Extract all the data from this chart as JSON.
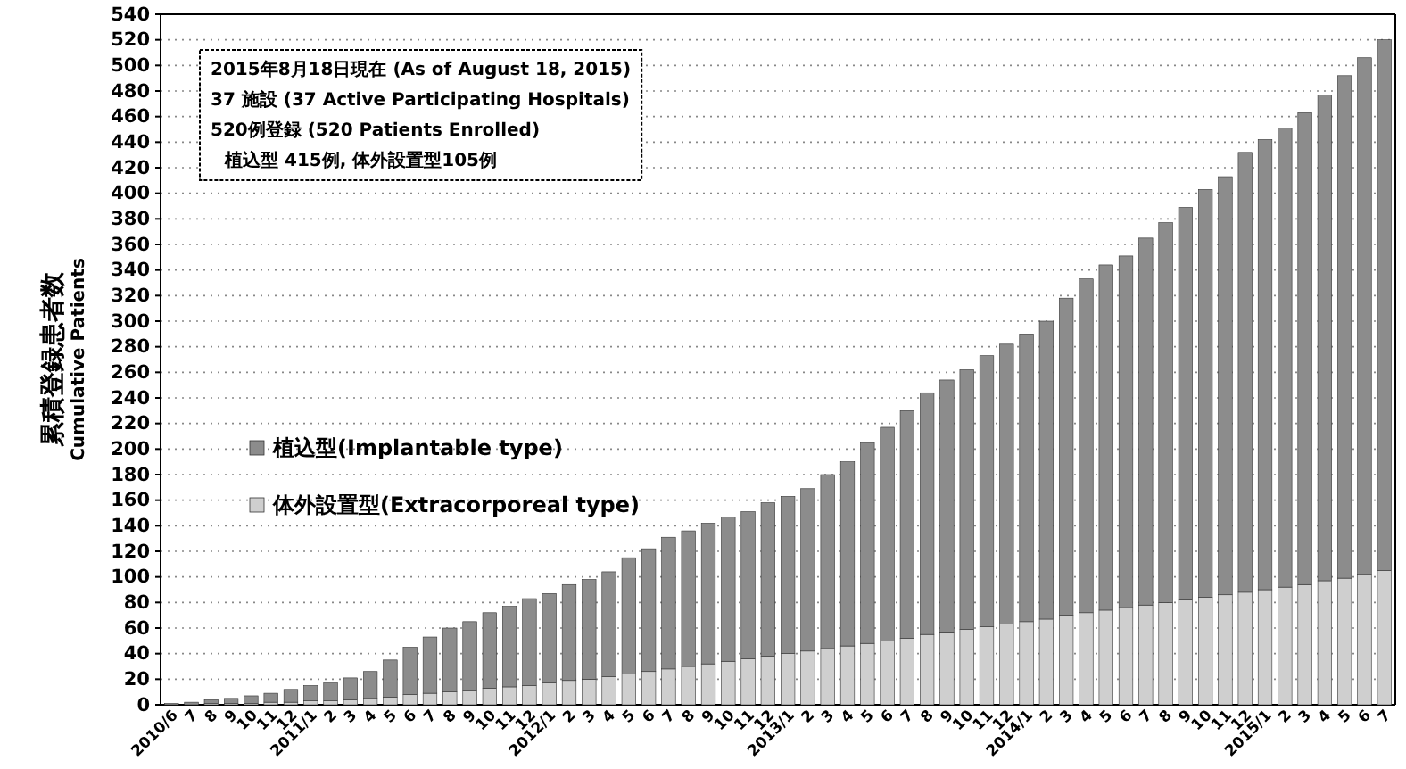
{
  "chart_data": {
    "type": "bar",
    "stacked": true,
    "ylabel": "累積登録患者数\nCumulative Patients",
    "categories": [
      "2010/6",
      "7",
      "8",
      "9",
      "10",
      "11",
      "12",
      "2011/1",
      "2",
      "3",
      "4",
      "5",
      "6",
      "7",
      "8",
      "9",
      "10",
      "11",
      "12",
      "2012/1",
      "2",
      "3",
      "4",
      "5",
      "6",
      "7",
      "8",
      "9",
      "10",
      "11",
      "12",
      "2013/1",
      "2",
      "3",
      "4",
      "5",
      "6",
      "7",
      "8",
      "9",
      "10",
      "11",
      "12",
      "2014/1",
      "2",
      "3",
      "4",
      "5",
      "6",
      "7",
      "8",
      "9",
      "10",
      "11",
      "12",
      "2015/1",
      "2",
      "3",
      "4",
      "5",
      "6",
      "7"
    ],
    "series": [
      {
        "name": "体外設置型(Extracorporeal type)",
        "color": "#cfcfcf",
        "values": [
          0,
          0,
          1,
          1,
          1,
          2,
          2,
          3,
          3,
          4,
          5,
          6,
          8,
          9,
          10,
          11,
          13,
          14,
          15,
          17,
          19,
          20,
          22,
          24,
          26,
          28,
          30,
          32,
          34,
          36,
          38,
          40,
          42,
          44,
          46,
          48,
          50,
          52,
          55,
          57,
          59,
          61,
          63,
          65,
          67,
          70,
          72,
          74,
          76,
          78,
          80,
          82,
          84,
          86,
          88,
          90,
          92,
          94,
          97,
          99,
          102,
          105
        ]
      },
      {
        "name": "植込型(Implantable type)",
        "color": "#8c8c8c",
        "values": [
          1,
          2,
          3,
          4,
          6,
          7,
          10,
          12,
          14,
          17,
          21,
          29,
          37,
          44,
          50,
          54,
          59,
          63,
          68,
          70,
          75,
          78,
          82,
          91,
          96,
          103,
          106,
          110,
          113,
          115,
          120,
          123,
          127,
          136,
          144,
          157,
          167,
          178,
          189,
          197,
          203,
          212,
          219,
          225,
          233,
          248,
          261,
          270,
          275,
          287,
          297,
          307,
          319,
          327,
          344,
          352,
          359,
          369,
          380,
          393,
          404,
          415
        ]
      }
    ],
    "ylim": [
      0,
      540
    ],
    "yticks": [
      0,
      20,
      40,
      60,
      80,
      100,
      120,
      140,
      160,
      180,
      200,
      220,
      240,
      260,
      280,
      300,
      320,
      340,
      360,
      380,
      400,
      420,
      440,
      460,
      480,
      500,
      520,
      540
    ],
    "grid": "y",
    "legend": "left",
    "annotations": [
      "2015年8月18日現在 (As of August 18, 2015)",
      "37 施設 (37 Active Participating Hospitals)",
      "520例登録 (520 Patients Enrolled)",
      "植込型 415例, 体外設置型105例"
    ]
  }
}
